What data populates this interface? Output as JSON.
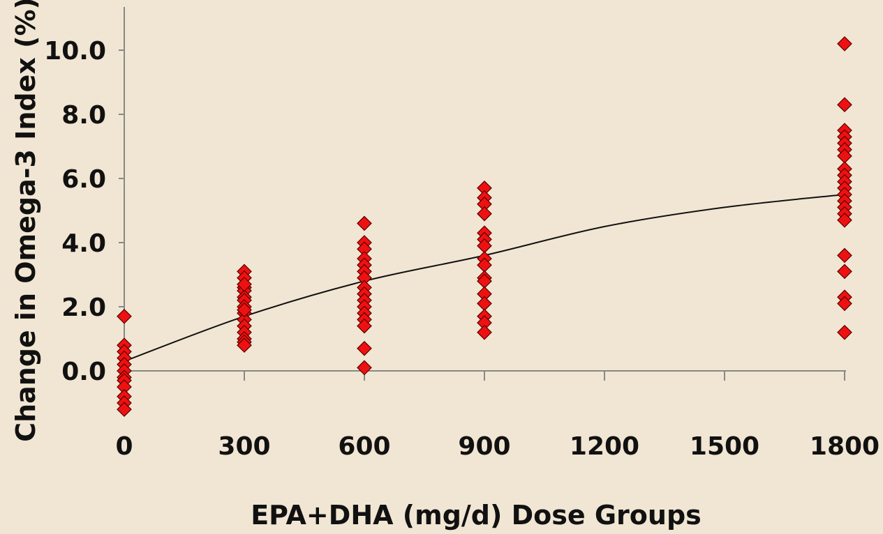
{
  "chart_data": {
    "type": "scatter",
    "title": "",
    "xlabel": "EPA+DHA (mg/d) Dose Groups",
    "ylabel": "Change in Omega-3 Index (%)",
    "ylim": [
      -1.3,
      10.8
    ],
    "y_ticks": [
      "0.0",
      "2.0",
      "4.0",
      "6.0",
      "8.0",
      "10.0"
    ],
    "x_ticks": [
      "0",
      "300",
      "600",
      "900",
      "1200",
      "1500",
      "1800"
    ],
    "grid": false,
    "legend": "none",
    "marker": "diamond",
    "marker_color": "#ee1111",
    "trend_color": "#111111",
    "series": [
      {
        "points": [
          [
            0,
            1.7
          ],
          [
            0,
            0.8
          ],
          [
            0,
            0.6
          ],
          [
            0,
            0.4
          ],
          [
            0,
            0.2
          ],
          [
            0,
            0.0
          ],
          [
            0,
            -0.2
          ],
          [
            0,
            -0.3
          ],
          [
            0,
            -0.5
          ],
          [
            0,
            -0.8
          ],
          [
            0,
            -1.0
          ],
          [
            0,
            -1.2
          ],
          [
            300,
            3.1
          ],
          [
            300,
            2.9
          ],
          [
            300,
            2.6
          ],
          [
            300,
            2.5
          ],
          [
            300,
            2.3
          ],
          [
            300,
            2.2
          ],
          [
            300,
            2.0
          ],
          [
            300,
            1.8
          ],
          [
            300,
            1.6
          ],
          [
            300,
            1.4
          ],
          [
            300,
            1.2
          ],
          [
            300,
            1.0
          ],
          [
            300,
            0.9
          ],
          [
            300,
            0.8
          ],
          [
            300,
            2.7
          ],
          [
            300,
            1.9
          ],
          [
            600,
            4.6
          ],
          [
            600,
            4.0
          ],
          [
            600,
            3.8
          ],
          [
            600,
            3.5
          ],
          [
            600,
            3.3
          ],
          [
            600,
            3.1
          ],
          [
            600,
            2.9
          ],
          [
            600,
            2.6
          ],
          [
            600,
            2.4
          ],
          [
            600,
            2.2
          ],
          [
            600,
            2.0
          ],
          [
            600,
            1.8
          ],
          [
            600,
            1.6
          ],
          [
            600,
            1.4
          ],
          [
            600,
            0.7
          ],
          [
            600,
            0.1
          ],
          [
            900,
            5.7
          ],
          [
            900,
            5.4
          ],
          [
            900,
            5.2
          ],
          [
            900,
            4.9
          ],
          [
            900,
            4.3
          ],
          [
            900,
            4.1
          ],
          [
            900,
            3.9
          ],
          [
            900,
            3.5
          ],
          [
            900,
            3.3
          ],
          [
            900,
            2.9
          ],
          [
            900,
            2.8
          ],
          [
            900,
            2.4
          ],
          [
            900,
            2.1
          ],
          [
            900,
            1.7
          ],
          [
            900,
            1.5
          ],
          [
            900,
            1.2
          ],
          [
            1800,
            10.2
          ],
          [
            1800,
            8.3
          ],
          [
            1800,
            7.5
          ],
          [
            1800,
            7.3
          ],
          [
            1800,
            7.1
          ],
          [
            1800,
            6.9
          ],
          [
            1800,
            6.7
          ],
          [
            1800,
            6.3
          ],
          [
            1800,
            6.1
          ],
          [
            1800,
            5.9
          ],
          [
            1800,
            5.7
          ],
          [
            1800,
            5.5
          ],
          [
            1800,
            5.3
          ],
          [
            1800,
            5.1
          ],
          [
            1800,
            4.9
          ],
          [
            1800,
            4.7
          ],
          [
            1800,
            3.6
          ],
          [
            1800,
            3.1
          ],
          [
            1800,
            2.3
          ],
          [
            1800,
            2.1
          ],
          [
            1800,
            1.2
          ]
        ]
      }
    ],
    "trendline": {
      "type": "curve",
      "points": [
        [
          0,
          0.3
        ],
        [
          300,
          1.7
        ],
        [
          600,
          2.8
        ],
        [
          900,
          3.6
        ],
        [
          1200,
          4.5
        ],
        [
          1500,
          5.1
        ],
        [
          1800,
          5.5
        ]
      ]
    }
  }
}
